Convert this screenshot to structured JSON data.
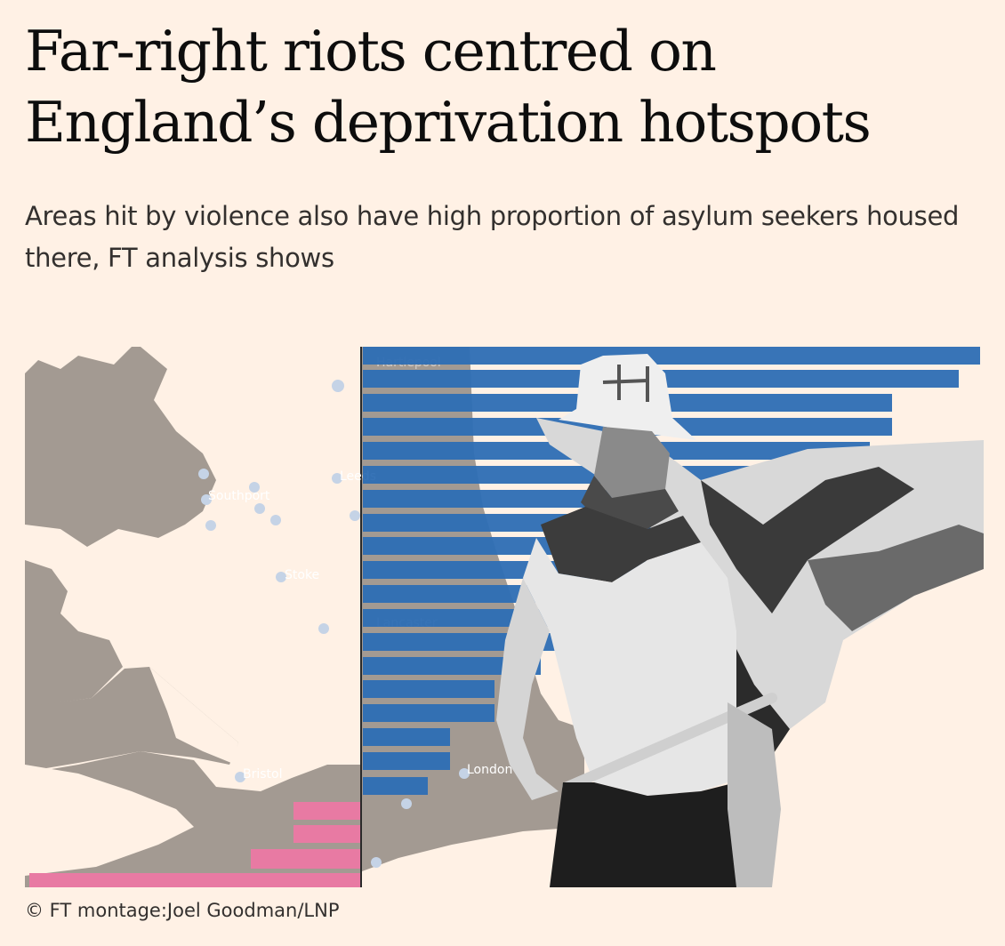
{
  "article": {
    "headline": "Far-right riots centred on England’s deprivation hotspots",
    "standfirst": "Areas hit by violence also have high proportion of asylum seekers housed there, FT analysis shows",
    "credit": "© FT montage:Joel Goodman/LNP"
  },
  "montage": {
    "map_labels": {
      "left": [
        "Southport",
        "Stoke",
        "Bristol"
      ],
      "right": [
        "Hartlepool",
        "Leeds",
        "Lancaster",
        "London"
      ]
    },
    "colors": {
      "background": "#fff1e5",
      "map_land": "#a39a92",
      "bar_blue": "#2e6eb5",
      "bar_pink": "#e87aa3",
      "marker": "#c5d3e6"
    }
  }
}
